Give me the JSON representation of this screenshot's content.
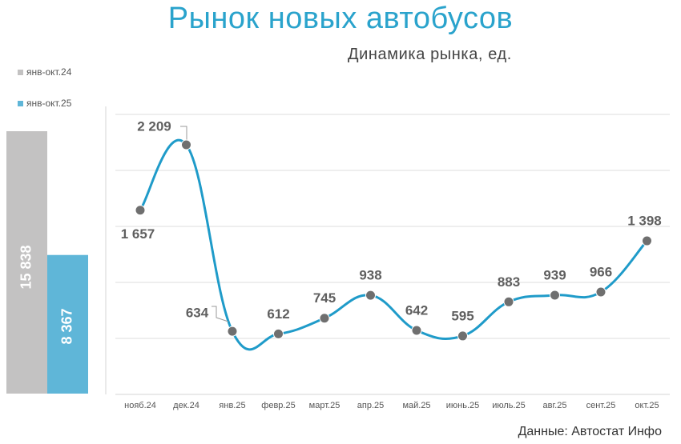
{
  "title": "Рынок новых автобусов",
  "subtitle": "Динамика рынка, ед.",
  "source": "Данные: Автостат Инфо",
  "colors": {
    "accent": "#2aa3cc",
    "line": "#1f9bc9",
    "marker": "#6f6f6f",
    "bar_prev": "#c3c2c2",
    "bar_curr": "#5fb6d8",
    "label": "#5f5f5f"
  },
  "chart_data": [
    {
      "type": "bar",
      "series": [
        {
          "name": "янв-окт.24",
          "value": 15838,
          "label": "15 838"
        },
        {
          "name": "янв-окт.25",
          "value": 8367,
          "label": "8 367"
        }
      ]
    },
    {
      "type": "line",
      "categories": [
        "нояб.24",
        "дек.24",
        "янв.25",
        "февр.25",
        "март.25",
        "апр.25",
        "май.25",
        "июнь.25",
        "июль.25",
        "авг.25",
        "сент.25",
        "окт.25"
      ],
      "values": [
        1657,
        2209,
        634,
        612,
        745,
        938,
        642,
        595,
        883,
        939,
        966,
        1398
      ],
      "labels": [
        "1 657",
        "2 209",
        "634",
        "612",
        "745",
        "938",
        "642",
        "595",
        "883",
        "939",
        "966",
        "1 398"
      ],
      "grid": true
    }
  ]
}
